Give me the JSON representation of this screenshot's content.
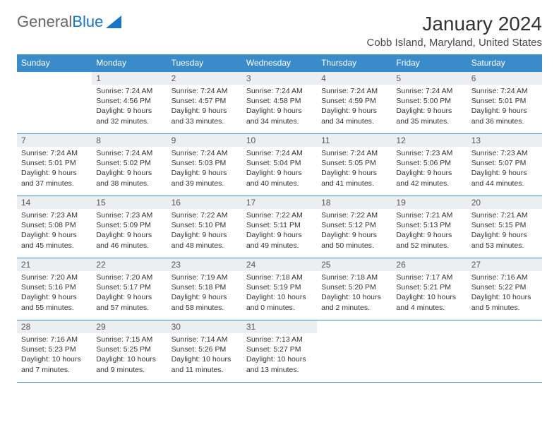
{
  "logo": {
    "part1": "General",
    "part2": "Blue"
  },
  "title": "January 2024",
  "location": "Cobb Island, Maryland, United States",
  "colors": {
    "header_bg": "#3a8bc9",
    "header_text": "#ffffff",
    "daynum_bg": "#eceff1",
    "border": "#3a8bc9",
    "logo_blue": "#1976c5"
  },
  "weekdays": [
    "Sunday",
    "Monday",
    "Tuesday",
    "Wednesday",
    "Thursday",
    "Friday",
    "Saturday"
  ],
  "weeks": [
    [
      {
        "n": "",
        "sr": "",
        "ss": "",
        "dl": ""
      },
      {
        "n": "1",
        "sr": "Sunrise: 7:24 AM",
        "ss": "Sunset: 4:56 PM",
        "dl": "Daylight: 9 hours and 32 minutes."
      },
      {
        "n": "2",
        "sr": "Sunrise: 7:24 AM",
        "ss": "Sunset: 4:57 PM",
        "dl": "Daylight: 9 hours and 33 minutes."
      },
      {
        "n": "3",
        "sr": "Sunrise: 7:24 AM",
        "ss": "Sunset: 4:58 PM",
        "dl": "Daylight: 9 hours and 34 minutes."
      },
      {
        "n": "4",
        "sr": "Sunrise: 7:24 AM",
        "ss": "Sunset: 4:59 PM",
        "dl": "Daylight: 9 hours and 34 minutes."
      },
      {
        "n": "5",
        "sr": "Sunrise: 7:24 AM",
        "ss": "Sunset: 5:00 PM",
        "dl": "Daylight: 9 hours and 35 minutes."
      },
      {
        "n": "6",
        "sr": "Sunrise: 7:24 AM",
        "ss": "Sunset: 5:01 PM",
        "dl": "Daylight: 9 hours and 36 minutes."
      }
    ],
    [
      {
        "n": "7",
        "sr": "Sunrise: 7:24 AM",
        "ss": "Sunset: 5:01 PM",
        "dl": "Daylight: 9 hours and 37 minutes."
      },
      {
        "n": "8",
        "sr": "Sunrise: 7:24 AM",
        "ss": "Sunset: 5:02 PM",
        "dl": "Daylight: 9 hours and 38 minutes."
      },
      {
        "n": "9",
        "sr": "Sunrise: 7:24 AM",
        "ss": "Sunset: 5:03 PM",
        "dl": "Daylight: 9 hours and 39 minutes."
      },
      {
        "n": "10",
        "sr": "Sunrise: 7:24 AM",
        "ss": "Sunset: 5:04 PM",
        "dl": "Daylight: 9 hours and 40 minutes."
      },
      {
        "n": "11",
        "sr": "Sunrise: 7:24 AM",
        "ss": "Sunset: 5:05 PM",
        "dl": "Daylight: 9 hours and 41 minutes."
      },
      {
        "n": "12",
        "sr": "Sunrise: 7:23 AM",
        "ss": "Sunset: 5:06 PM",
        "dl": "Daylight: 9 hours and 42 minutes."
      },
      {
        "n": "13",
        "sr": "Sunrise: 7:23 AM",
        "ss": "Sunset: 5:07 PM",
        "dl": "Daylight: 9 hours and 44 minutes."
      }
    ],
    [
      {
        "n": "14",
        "sr": "Sunrise: 7:23 AM",
        "ss": "Sunset: 5:08 PM",
        "dl": "Daylight: 9 hours and 45 minutes."
      },
      {
        "n": "15",
        "sr": "Sunrise: 7:23 AM",
        "ss": "Sunset: 5:09 PM",
        "dl": "Daylight: 9 hours and 46 minutes."
      },
      {
        "n": "16",
        "sr": "Sunrise: 7:22 AM",
        "ss": "Sunset: 5:10 PM",
        "dl": "Daylight: 9 hours and 48 minutes."
      },
      {
        "n": "17",
        "sr": "Sunrise: 7:22 AM",
        "ss": "Sunset: 5:11 PM",
        "dl": "Daylight: 9 hours and 49 minutes."
      },
      {
        "n": "18",
        "sr": "Sunrise: 7:22 AM",
        "ss": "Sunset: 5:12 PM",
        "dl": "Daylight: 9 hours and 50 minutes."
      },
      {
        "n": "19",
        "sr": "Sunrise: 7:21 AM",
        "ss": "Sunset: 5:13 PM",
        "dl": "Daylight: 9 hours and 52 minutes."
      },
      {
        "n": "20",
        "sr": "Sunrise: 7:21 AM",
        "ss": "Sunset: 5:15 PM",
        "dl": "Daylight: 9 hours and 53 minutes."
      }
    ],
    [
      {
        "n": "21",
        "sr": "Sunrise: 7:20 AM",
        "ss": "Sunset: 5:16 PM",
        "dl": "Daylight: 9 hours and 55 minutes."
      },
      {
        "n": "22",
        "sr": "Sunrise: 7:20 AM",
        "ss": "Sunset: 5:17 PM",
        "dl": "Daylight: 9 hours and 57 minutes."
      },
      {
        "n": "23",
        "sr": "Sunrise: 7:19 AM",
        "ss": "Sunset: 5:18 PM",
        "dl": "Daylight: 9 hours and 58 minutes."
      },
      {
        "n": "24",
        "sr": "Sunrise: 7:18 AM",
        "ss": "Sunset: 5:19 PM",
        "dl": "Daylight: 10 hours and 0 minutes."
      },
      {
        "n": "25",
        "sr": "Sunrise: 7:18 AM",
        "ss": "Sunset: 5:20 PM",
        "dl": "Daylight: 10 hours and 2 minutes."
      },
      {
        "n": "26",
        "sr": "Sunrise: 7:17 AM",
        "ss": "Sunset: 5:21 PM",
        "dl": "Daylight: 10 hours and 4 minutes."
      },
      {
        "n": "27",
        "sr": "Sunrise: 7:16 AM",
        "ss": "Sunset: 5:22 PM",
        "dl": "Daylight: 10 hours and 5 minutes."
      }
    ],
    [
      {
        "n": "28",
        "sr": "Sunrise: 7:16 AM",
        "ss": "Sunset: 5:23 PM",
        "dl": "Daylight: 10 hours and 7 minutes."
      },
      {
        "n": "29",
        "sr": "Sunrise: 7:15 AM",
        "ss": "Sunset: 5:25 PM",
        "dl": "Daylight: 10 hours and 9 minutes."
      },
      {
        "n": "30",
        "sr": "Sunrise: 7:14 AM",
        "ss": "Sunset: 5:26 PM",
        "dl": "Daylight: 10 hours and 11 minutes."
      },
      {
        "n": "31",
        "sr": "Sunrise: 7:13 AM",
        "ss": "Sunset: 5:27 PM",
        "dl": "Daylight: 10 hours and 13 minutes."
      },
      {
        "n": "",
        "sr": "",
        "ss": "",
        "dl": ""
      },
      {
        "n": "",
        "sr": "",
        "ss": "",
        "dl": ""
      },
      {
        "n": "",
        "sr": "",
        "ss": "",
        "dl": ""
      }
    ]
  ]
}
